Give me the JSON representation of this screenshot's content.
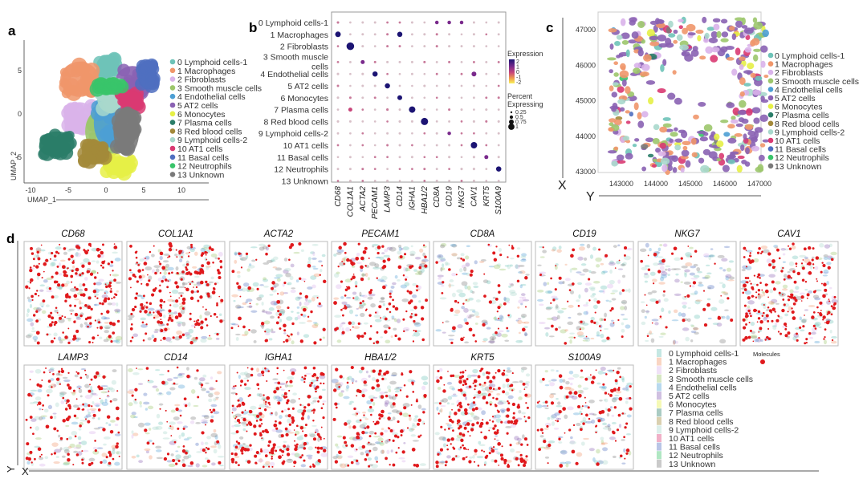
{
  "panel_labels": {
    "a": "a",
    "b": "b",
    "c": "c",
    "d": "d"
  },
  "clusters": [
    {
      "label": "0 Lymphoid cells-1",
      "color": "#6ec3b8"
    },
    {
      "label": "1 Macrophages",
      "color": "#f0966a"
    },
    {
      "label": "2 Fibroblasts",
      "color": "#d9b3ea"
    },
    {
      "label": "3 Smooth muscle cells",
      "color": "#9cc66b"
    },
    {
      "label": "4 Endothelial cells",
      "color": "#4d9fd4"
    },
    {
      "label": "5 AT2 cells",
      "color": "#8a62b3"
    },
    {
      "label": "6 Monocytes",
      "color": "#e6f046"
    },
    {
      "label": "7 Plasma cells",
      "color": "#2a7d68"
    },
    {
      "label": "8 Red blood cells",
      "color": "#a3893a"
    },
    {
      "label": "9 Lymphoid cells-2",
      "color": "#a8d8cc"
    },
    {
      "label": "10 AT1 cells",
      "color": "#d93a72"
    },
    {
      "label": "11 Basal cells",
      "color": "#4f6fc0"
    },
    {
      "label": "12 Neutrophils",
      "color": "#39c46a"
    },
    {
      "label": "13 Unknown",
      "color": "#7a7a7a"
    }
  ],
  "chart_data": [
    {
      "type": "scatter",
      "panel": "a",
      "xlabel": "UMAP_1",
      "ylabel": "UMAP_2",
      "xticks": [
        "-10",
        "-5",
        "0",
        "5",
        "10"
      ],
      "yticks": [
        "5",
        "0",
        "-5"
      ],
      "xlim": [
        -10,
        13
      ],
      "ylim": [
        -8,
        8
      ],
      "cluster_centers": [
        [
          0.2,
          5.5
        ],
        [
          -3.5,
          4
        ],
        [
          -3.5,
          -0.5
        ],
        [
          -0.2,
          -2
        ],
        [
          0.3,
          -1
        ],
        [
          3.5,
          3.5
        ],
        [
          1.7,
          -6
        ],
        [
          -6.5,
          -3.5
        ],
        [
          -1.5,
          -4.5
        ],
        [
          0.5,
          2
        ],
        [
          3.2,
          1.5
        ],
        [
          5.5,
          4.5
        ],
        [
          0.5,
          3.2
        ],
        [
          2.7,
          -2
        ]
      ]
    },
    {
      "type": "dot",
      "panel": "b",
      "rows": [
        "0 Lymphoid cells-1",
        "1 Macrophages",
        "2 Fibroblasts",
        "3 Smooth muscle cells",
        "4 Endothelial cells",
        "5 AT2 cells",
        "6 Monocytes",
        "7 Plasma cells",
        "8 Red blood cells",
        "9 Lymphoid cells-2",
        "10 AT1 cells",
        "11 Basal cells",
        "12 Neutrophils",
        "13 Unknown"
      ],
      "genes": [
        "CD68",
        "COL1A1",
        "ACTA2",
        "PECAM1",
        "LAMP3",
        "CD14",
        "IGHA1",
        "HBA1/2",
        "CD8A",
        "CD19",
        "NKG7",
        "CAV1",
        "KRT5",
        "S100A9"
      ],
      "highlights": [
        [
          1,
          0,
          0.5,
          2
        ],
        [
          1,
          5,
          0.45,
          2
        ],
        [
          2,
          1,
          0.75,
          2
        ],
        [
          3,
          2,
          0.3,
          1.5
        ],
        [
          4,
          3,
          0.45,
          2
        ],
        [
          4,
          11,
          0.4,
          1
        ],
        [
          5,
          4,
          0.45,
          2
        ],
        [
          6,
          5,
          0.4,
          2
        ],
        [
          7,
          6,
          0.6,
          2
        ],
        [
          7,
          1,
          0.3,
          0
        ],
        [
          8,
          7,
          0.7,
          2
        ],
        [
          10,
          11,
          0.6,
          2
        ],
        [
          11,
          12,
          0.3,
          1.5
        ],
        [
          12,
          13,
          0.45,
          2
        ],
        [
          0,
          8,
          0.25,
          1.5
        ],
        [
          0,
          9,
          0.25,
          1.5
        ],
        [
          0,
          10,
          0.25,
          1.5
        ],
        [
          9,
          9,
          0.25,
          1
        ]
      ],
      "expression_legend": {
        "title": "Expression",
        "ticks": [
          "2",
          "1",
          "0",
          "-1",
          "-2"
        ],
        "colors": [
          "#1c1473",
          "#7a2a8c",
          "#c8457a",
          "#f0a24a",
          "#f8f25c"
        ]
      },
      "percent_legend": {
        "title1": "Percent",
        "title2": "Expressing",
        "ticks": [
          "0.25",
          "0.5",
          "0.75",
          "1"
        ]
      }
    },
    {
      "type": "scatter",
      "panel": "c",
      "xlabel": "Y",
      "ylabel": "X",
      "xticks": [
        "143000",
        "144000",
        "145000",
        "146000",
        "147000"
      ],
      "yticks": [
        "47000",
        "46000",
        "45000",
        "44000",
        "43000"
      ],
      "xlim": [
        142600,
        147300
      ],
      "ylim": [
        42900,
        47300
      ]
    }
  ],
  "spatial": {
    "axis_x": "X",
    "axis_y": "Y",
    "molecules_label": "Molecules",
    "molecule_color": "#e0191c",
    "tiles": [
      {
        "gene": "CD68",
        "density": 0.8
      },
      {
        "gene": "COL1A1",
        "density": 0.9
      },
      {
        "gene": "ACTA2",
        "density": 0.25
      },
      {
        "gene": "PECAM1",
        "density": 0.5
      },
      {
        "gene": "CD8A",
        "density": 0.2
      },
      {
        "gene": "CD19",
        "density": 0.15
      },
      {
        "gene": "NKG7",
        "density": 0.12
      },
      {
        "gene": "CAV1",
        "density": 0.9
      },
      {
        "gene": "LAMP3",
        "density": 0.5
      },
      {
        "gene": "CD14",
        "density": 0.2
      },
      {
        "gene": "IGHA1",
        "density": 1.0
      },
      {
        "gene": "HBA1/2",
        "density": 0.5
      },
      {
        "gene": "KRT5",
        "density": 0.9
      },
      {
        "gene": "S100A9",
        "density": 0.35
      }
    ]
  }
}
